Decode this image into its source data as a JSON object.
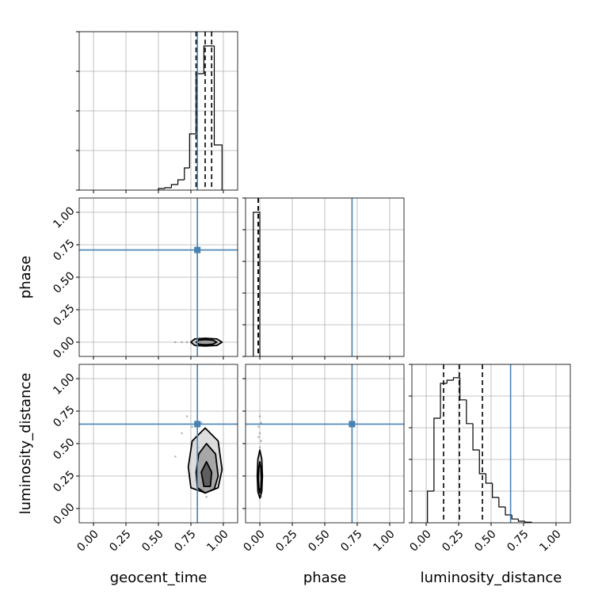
{
  "chart_data": {
    "type": "corner",
    "parameters": [
      "geocent_time",
      "phase",
      "luminosity_distance"
    ],
    "truths": [
      0.8,
      0.71,
      0.65
    ],
    "truth_color": "#4682b4",
    "xlim": [
      -0.11,
      1.11
    ],
    "ylim": [
      -0.11,
      1.11
    ],
    "xticks": [
      {
        "value": 0,
        "label": "0.00"
      },
      {
        "value": 0.25,
        "label": "0.25"
      },
      {
        "value": 0.5,
        "label": "0.50"
      },
      {
        "value": 0.75,
        "label": "0.75"
      },
      {
        "value": 1,
        "label": "1.00"
      }
    ],
    "yticks": [
      {
        "value": 0,
        "label": "0.00"
      },
      {
        "value": 0.25,
        "label": "0.25"
      },
      {
        "value": 0.5,
        "label": "0.50"
      },
      {
        "value": 0.75,
        "label": "0.75"
      },
      {
        "value": 1,
        "label": "1.00"
      }
    ],
    "grid": true,
    "histograms": [
      {
        "bins": [
          0.5,
          0.55,
          0.6,
          0.65,
          0.7,
          0.74,
          0.79,
          0.85,
          0.93,
          0.99
        ],
        "counts": [
          0.04,
          0.06,
          0.14,
          0.26,
          0.56,
          1.42,
          2.94,
          3.64,
          1.14
        ],
        "ylim": [
          0,
          4
        ],
        "yticks": [
          0,
          1,
          2,
          3,
          4
        ],
        "quantiles": [
          0.79,
          0.86,
          0.91
        ]
      },
      {
        "bins": [
          -0.05,
          0.0
        ],
        "counts": [
          4.55
        ],
        "ylim": [
          0,
          5
        ],
        "yticks": [
          0,
          1,
          2,
          3,
          4,
          5
        ],
        "quantiles": [
          -0.012,
          -0.012,
          -0.012
        ]
      },
      {
        "bins": [
          0.01,
          0.06,
          0.11,
          0.16,
          0.21,
          0.26,
          0.31,
          0.36,
          0.41,
          0.46,
          0.51,
          0.56,
          0.61,
          0.66,
          0.71,
          0.76,
          0.81
        ],
        "counts": [
          1.0,
          3.3,
          4.4,
          4.5,
          4.58,
          3.88,
          3.13,
          2.3,
          1.55,
          1.25,
          0.8,
          0.5,
          0.25,
          0.12,
          0.05,
          0.02
        ],
        "ylim": [
          0,
          5
        ],
        "yticks": [
          0,
          1,
          2,
          3,
          4,
          5
        ],
        "quantiles": [
          0.134,
          0.256,
          0.433
        ]
      }
    ],
    "samples": [
      [
        0.86,
        0.84,
        0.88,
        0.82,
        0.9,
        0.79,
        0.87,
        0.85,
        0.93,
        0.76,
        0.83,
        0.89,
        0.81,
        0.86,
        0.91,
        0.72,
        0.88,
        0.84,
        0.95,
        0.68,
        0.87,
        0.8,
        0.85,
        0.92,
        0.78,
        0.86,
        0.63,
        0.89,
        0.83,
        0.97
      ],
      [
        0.0,
        -0.01,
        0.01,
        0.0,
        0.01,
        -0.01,
        0.0,
        0.01,
        0.0,
        -0.01,
        0.01,
        0.0,
        0.0,
        -0.01,
        0.01,
        0.0,
        0.0,
        0.01,
        -0.01,
        0.0,
        0.01,
        0.0,
        -0.01,
        0.0,
        0.01,
        0.0,
        0.0,
        -0.01,
        0.01,
        0.0
      ],
      [
        0.24,
        0.31,
        0.18,
        0.42,
        0.22,
        0.55,
        0.27,
        0.15,
        0.36,
        0.63,
        0.2,
        0.29,
        0.47,
        0.12,
        0.33,
        0.71,
        0.25,
        0.38,
        0.19,
        0.58,
        0.09,
        0.44,
        0.28,
        0.23,
        0.52,
        0.35,
        0.4,
        0.16,
        0.66,
        0.3
      ]
    ],
    "contours": [
      {
        "x_param": 0,
        "y_param": 1,
        "levels": [
          {
            "x": [
              0.86,
              0.95,
              0.99,
              0.95,
              0.86,
              0.78,
              0.75,
              0.78
            ],
            "y": [
              0.03,
              0.025,
              0,
              -0.025,
              -0.03,
              -0.025,
              0,
              0.025
            ]
          },
          {
            "x": [
              0.86,
              0.92,
              0.95,
              0.92,
              0.86,
              0.81,
              0.79,
              0.81
            ],
            "y": [
              0.02,
              0.015,
              0,
              -0.015,
              -0.02,
              -0.015,
              0,
              0.015
            ]
          }
        ]
      },
      {
        "x_param": 0,
        "y_param": 2,
        "levels": [
          {
            "x": [
              0.86,
              0.96,
              0.99,
              0.96,
              0.86,
              0.75,
              0.73,
              0.76
            ],
            "y": [
              0.62,
              0.52,
              0.3,
              0.16,
              0.12,
              0.16,
              0.32,
              0.52
            ]
          },
          {
            "x": [
              0.87,
              0.94,
              0.96,
              0.93,
              0.86,
              0.8,
              0.79,
              0.81
            ],
            "y": [
              0.5,
              0.42,
              0.25,
              0.15,
              0.12,
              0.16,
              0.28,
              0.42
            ]
          },
          {
            "x": [
              0.87,
              0.91,
              0.9,
              0.85,
              0.83
            ],
            "y": [
              0.36,
              0.28,
              0.17,
              0.17,
              0.28
            ]
          }
        ]
      },
      {
        "x_param": 1,
        "y_param": 2,
        "levels": [
          {
            "x": [
              0.0,
              0.015,
              0.02,
              0.015,
              0.0,
              -0.015,
              -0.02,
              -0.015
            ],
            "y": [
              0.45,
              0.38,
              0.25,
              0.13,
              0.08,
              0.13,
              0.25,
              0.38
            ]
          },
          {
            "x": [
              0.0,
              0.008,
              0.012,
              0.008,
              0.0,
              -0.008,
              -0.012,
              -0.008
            ],
            "y": [
              0.36,
              0.31,
              0.23,
              0.16,
              0.12,
              0.16,
              0.23,
              0.31
            ]
          }
        ]
      }
    ]
  }
}
